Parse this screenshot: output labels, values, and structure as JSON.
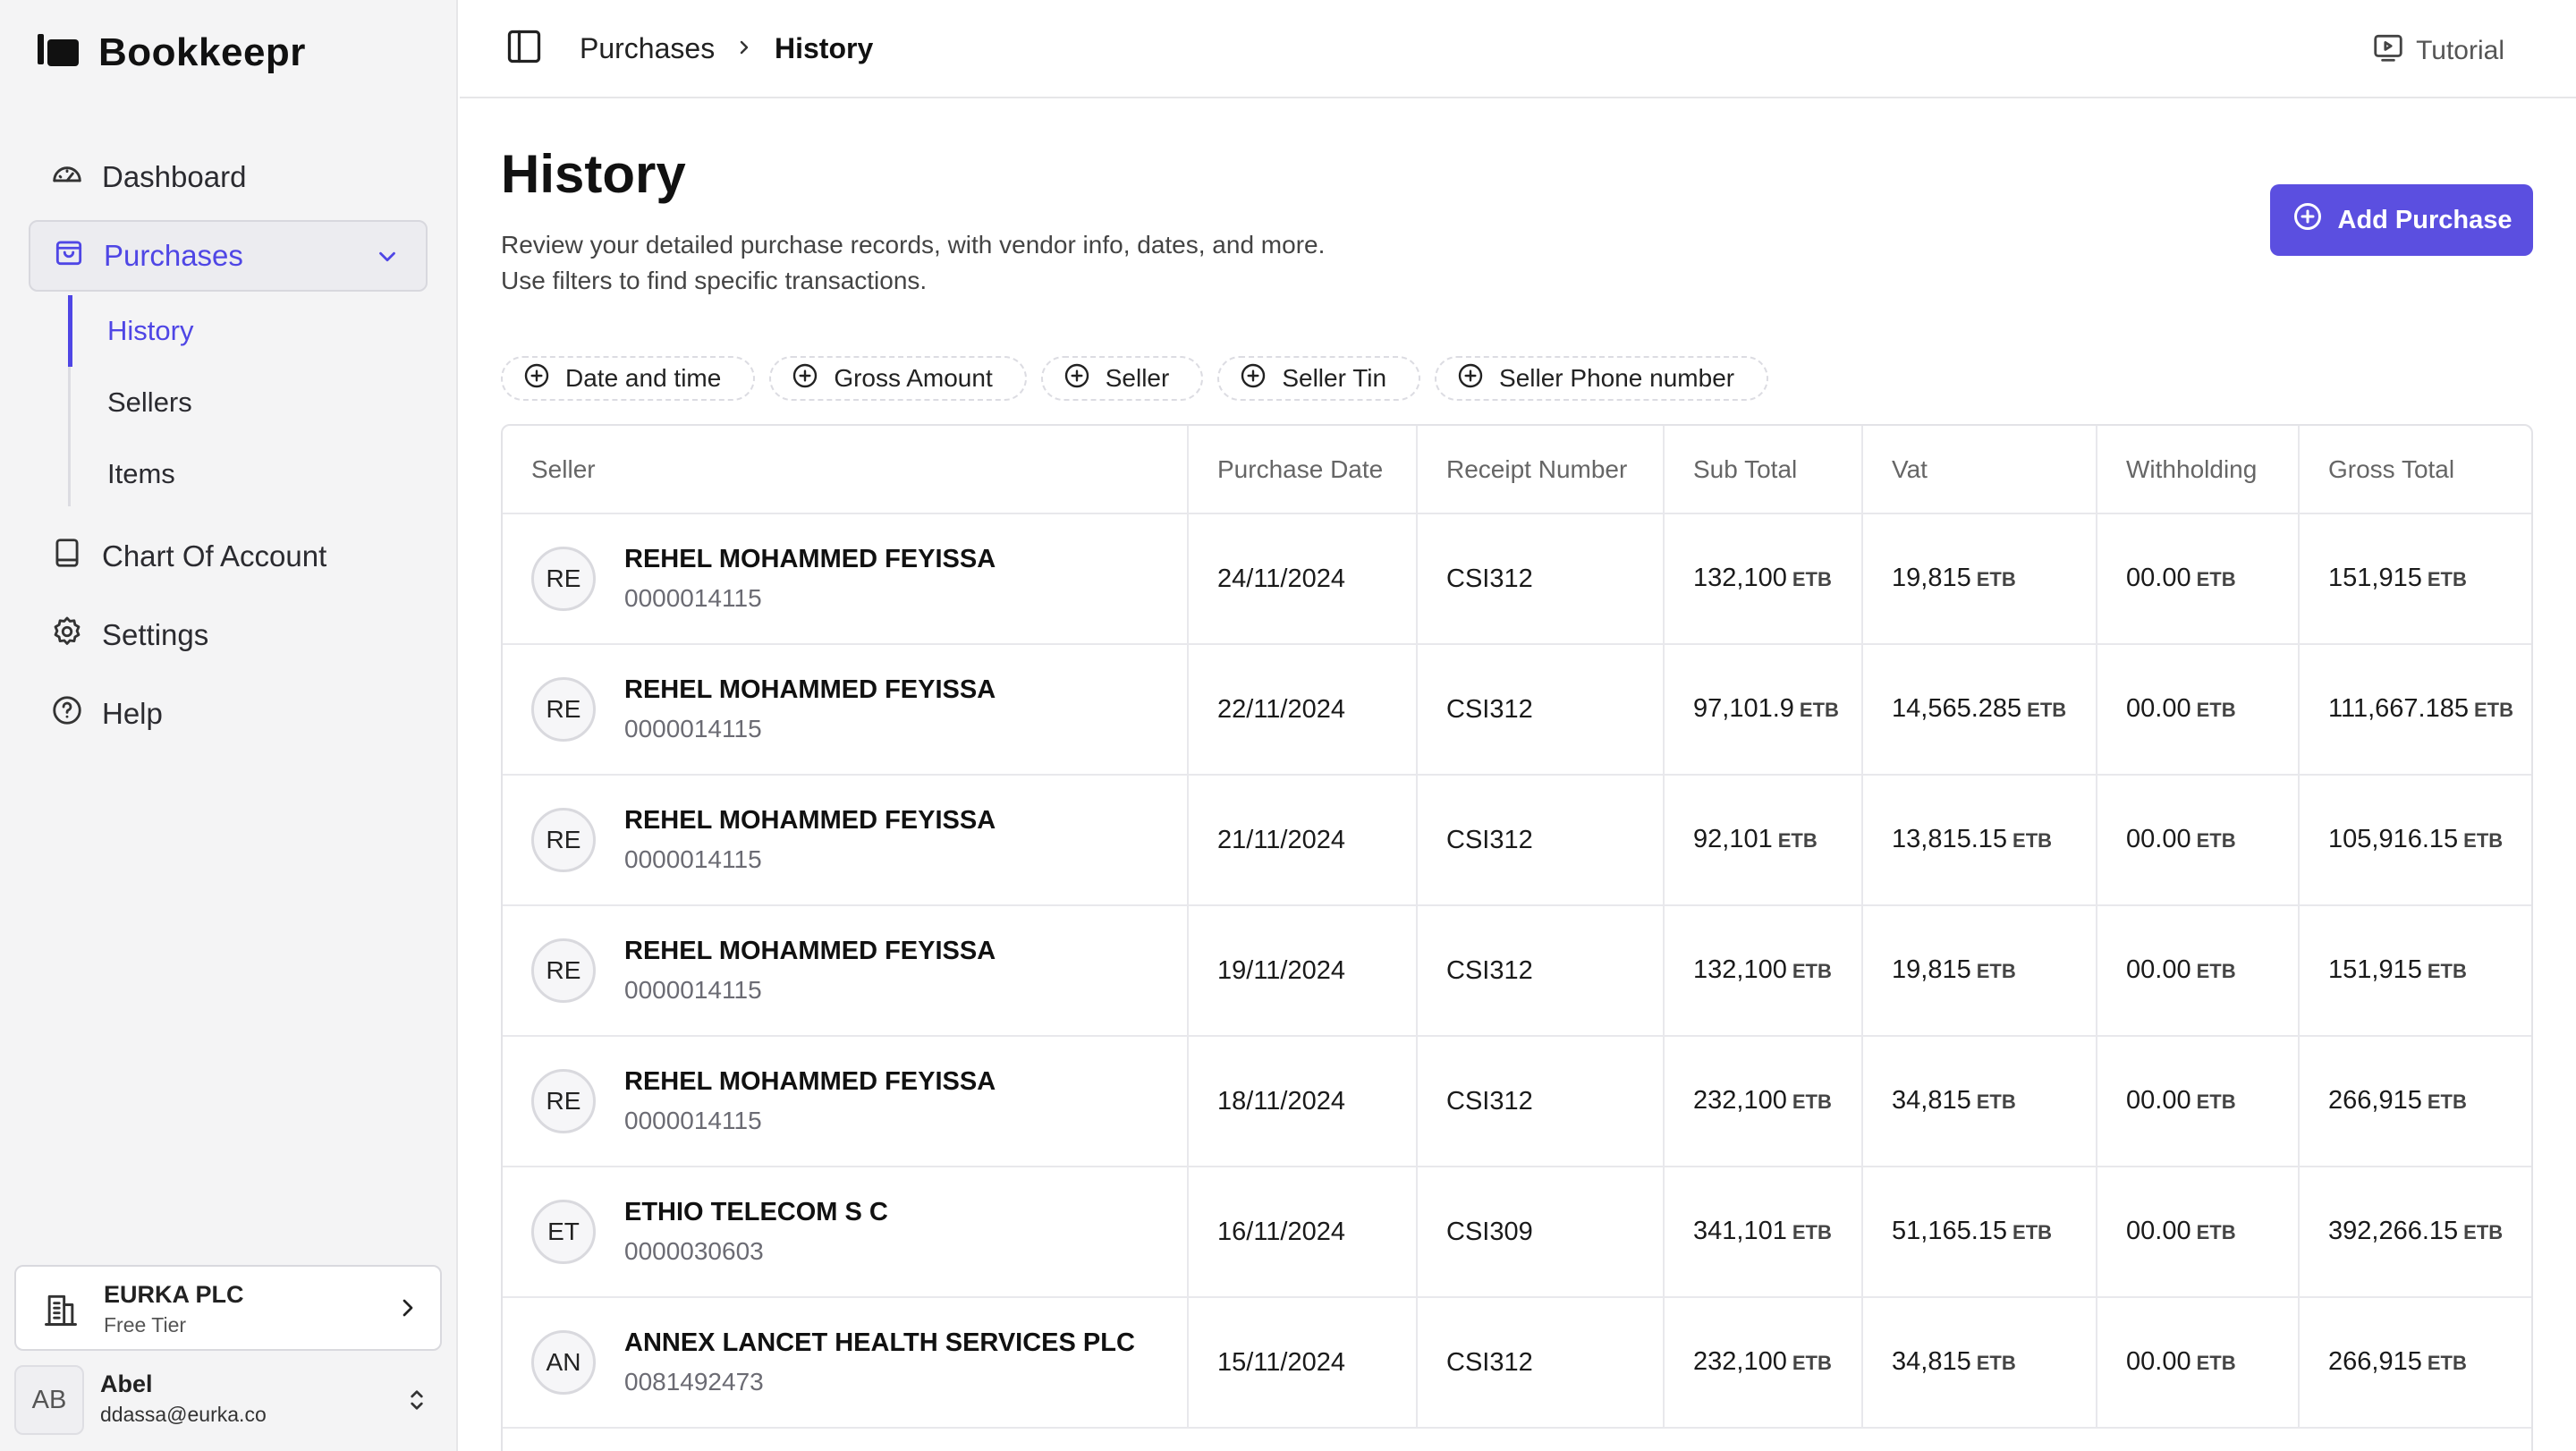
{
  "app": {
    "name": "Bookkeepr"
  },
  "sidebar": {
    "nav": [
      {
        "label": "Dashboard"
      },
      {
        "label": "Purchases"
      },
      {
        "label": "Chart Of Account"
      },
      {
        "label": "Settings"
      },
      {
        "label": "Help"
      }
    ],
    "sub_items": [
      {
        "label": "History"
      },
      {
        "label": "Sellers"
      },
      {
        "label": "Items"
      }
    ],
    "company": {
      "name": "EURKA PLC",
      "tier": "Free Tier"
    },
    "user": {
      "initials": "AB",
      "name": "Abel",
      "email": "ddassa@eurka.co"
    }
  },
  "topbar": {
    "breadcrumb": [
      "Purchases",
      "History"
    ],
    "tutorial_label": "Tutorial"
  },
  "page": {
    "title": "History",
    "description_line1": "Review your detailed purchase records, with vendor info, dates, and more.",
    "description_line2": "Use filters to find specific transactions.",
    "add_button_label": "Add Purchase"
  },
  "filters": [
    "Date and time",
    "Gross Amount",
    "Seller",
    "Seller Tin",
    "Seller Phone number"
  ],
  "table": {
    "columns": [
      "Seller",
      "Purchase Date",
      "Receipt Number",
      "Sub Total",
      "Vat",
      "Withholding",
      "Gross Total"
    ],
    "currency": "ETB",
    "rows": [
      {
        "initials": "RE",
        "seller": "REHEL MOHAMMED FEYISSA",
        "tin": "0000014115",
        "date": "24/11/2024",
        "receipt": "CSI312",
        "sub_total": "132,100",
        "vat": "19,815",
        "withholding": "00.00",
        "gross_total": "151,915"
      },
      {
        "initials": "RE",
        "seller": "REHEL MOHAMMED FEYISSA",
        "tin": "0000014115",
        "date": "22/11/2024",
        "receipt": "CSI312",
        "sub_total": "97,101.9",
        "vat": "14,565.285",
        "withholding": "00.00",
        "gross_total": "111,667.185"
      },
      {
        "initials": "RE",
        "seller": "REHEL MOHAMMED FEYISSA",
        "tin": "0000014115",
        "date": "21/11/2024",
        "receipt": "CSI312",
        "sub_total": "92,101",
        "vat": "13,815.15",
        "withholding": "00.00",
        "gross_total": "105,916.15"
      },
      {
        "initials": "RE",
        "seller": "REHEL MOHAMMED FEYISSA",
        "tin": "0000014115",
        "date": "19/11/2024",
        "receipt": "CSI312",
        "sub_total": "132,100",
        "vat": "19,815",
        "withholding": "00.00",
        "gross_total": "151,915"
      },
      {
        "initials": "RE",
        "seller": "REHEL MOHAMMED FEYISSA",
        "tin": "0000014115",
        "date": "18/11/2024",
        "receipt": "CSI312",
        "sub_total": "232,100",
        "vat": "34,815",
        "withholding": "00.00",
        "gross_total": "266,915"
      },
      {
        "initials": "ET",
        "seller": "ETHIO TELECOM S C",
        "tin": "0000030603",
        "date": "16/11/2024",
        "receipt": "CSI309",
        "sub_total": "341,101",
        "vat": "51,165.15",
        "withholding": "00.00",
        "gross_total": "392,266.15"
      },
      {
        "initials": "AN",
        "seller": "ANNEX LANCET HEALTH SERVICES PLC",
        "tin": "0081492473",
        "date": "15/11/2024",
        "receipt": "CSI312",
        "sub_total": "232,100",
        "vat": "34,815",
        "withholding": "00.00",
        "gross_total": "266,915"
      }
    ]
  },
  "colors": {
    "accent": "#5b4fe0",
    "sidebar_bg": "#f4f4f5",
    "border": "#e3e3e7"
  },
  "icons": [
    "logo-icon",
    "dashboard-icon",
    "bag-icon",
    "chevron-down-icon",
    "book-icon",
    "gear-icon",
    "help-icon",
    "building-icon",
    "chevron-right-icon",
    "updown-icon",
    "sidebar-toggle-icon",
    "video-icon",
    "plus-circle-icon"
  ]
}
